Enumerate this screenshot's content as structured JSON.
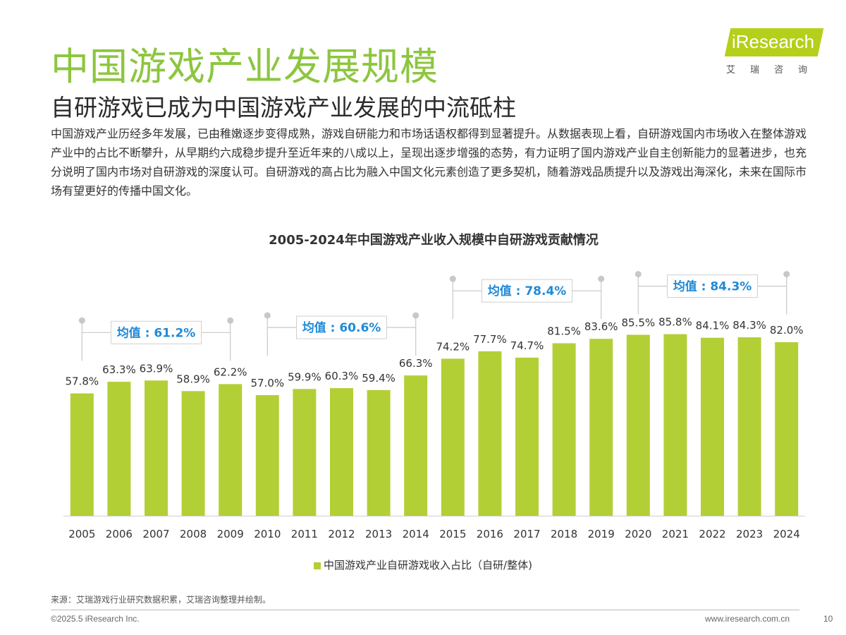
{
  "header": {
    "title": "中国游戏产业发展规模",
    "subtitle": "自研游戏已成为中国游戏产业发展的中流砥柱",
    "paragraph": "中国游戏产业历经多年发展，已由稚嫩逐步变得成熟，游戏自研能力和市场话语权都得到显著提升。从数据表现上看，自研游戏国内市场收入在整体游戏产业中的占比不断攀升，从早期约六成稳步提升至近年来的八成以上，呈现出逐步增强的态势，有力证明了国内游戏产业自主创新能力的显著进步，也充分说明了国内市场对自研游戏的深度认可。自研游戏的高占比为融入中国文化元素创造了更多契机，随着游戏品质提升以及游戏出海深化，未来在国际市场有望更好的传播中国文化。"
  },
  "logo": {
    "text": "iResearch",
    "sub": "艾瑞咨询"
  },
  "chart_data": {
    "type": "bar",
    "title": "2005-2024年中国游戏产业收入规模中自研游戏贡献情况",
    "categories": [
      "2005",
      "2006",
      "2007",
      "2008",
      "2009",
      "2010",
      "2011",
      "2012",
      "2013",
      "2014",
      "2015",
      "2016",
      "2017",
      "2018",
      "2019",
      "2020",
      "2021",
      "2022",
      "2023",
      "2024"
    ],
    "series": [
      {
        "name": "中国游戏产业自研游戏收入占比（自研/整体)",
        "values": [
          57.8,
          63.3,
          63.9,
          58.9,
          62.2,
          57.0,
          59.9,
          60.3,
          59.4,
          66.3,
          74.2,
          77.7,
          74.7,
          81.5,
          83.6,
          85.5,
          85.8,
          84.1,
          84.3,
          82.0
        ]
      }
    ],
    "value_labels": [
      "57.8%",
      "63.3%",
      "63.9%",
      "58.9%",
      "62.2%",
      "57.0%",
      "59.9%",
      "60.3%",
      "59.4%",
      "66.3%",
      "74.2%",
      "77.7%",
      "74.7%",
      "81.5%",
      "83.6%",
      "85.5%",
      "85.8%",
      "84.1%",
      "84.3%",
      "82.0%"
    ],
    "annotations": [
      {
        "label": "均值 : 61.2%",
        "from": "2005",
        "to": "2009"
      },
      {
        "label": "均值 : 60.6%",
        "from": "2010",
        "to": "2014"
      },
      {
        "label": "均值 : 78.4%",
        "from": "2015",
        "to": "2019"
      },
      {
        "label": "均值 : 84.3%",
        "from": "2020",
        "to": "2024"
      }
    ],
    "bar_color": "#b3cf36",
    "accent_color": "#1f8ad8",
    "legend_position": "bottom"
  },
  "footer": {
    "source": "来源：艾瑞游戏行业研究数据积累，艾瑞咨询整理并绘制。",
    "copyright": "©2025.5 iResearch Inc.",
    "website": "www.iresearch.com.cn",
    "page": "10"
  }
}
